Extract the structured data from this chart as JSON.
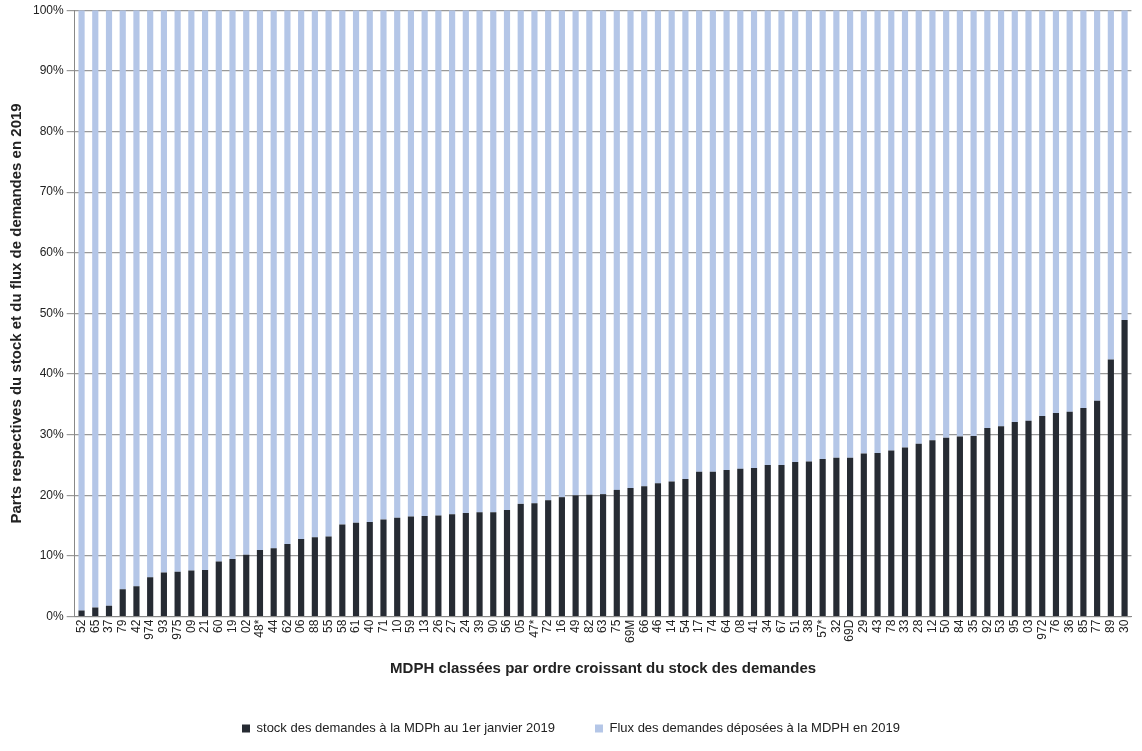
{
  "chart_data": {
    "type": "bar",
    "stacked": true,
    "xlabel": "MDPH classées par ordre croissant du stock des demandes",
    "ylabel": "Parts respectives du stock et du flux de demandes en 2019",
    "categories": [
      "52",
      "65",
      "37",
      "79",
      "42",
      "974",
      "93",
      "975",
      "09",
      "21",
      "60",
      "19",
      "02",
      "48*",
      "44",
      "62",
      "06",
      "88",
      "55",
      "58",
      "61",
      "40",
      "71",
      "10",
      "59",
      "13",
      "26",
      "27",
      "24",
      "39",
      "90",
      "56",
      "05",
      "47*",
      "72",
      "16",
      "49",
      "82",
      "63",
      "75",
      "69M",
      "66",
      "46",
      "14",
      "54",
      "17",
      "74",
      "64",
      "08",
      "41",
      "34",
      "67",
      "51",
      "38",
      "57*",
      "32",
      "69D",
      "29",
      "43",
      "78",
      "33",
      "28",
      "12",
      "50",
      "84",
      "35",
      "92",
      "53",
      "95",
      "03",
      "972",
      "76",
      "36",
      "85",
      "77",
      "89",
      "30"
    ],
    "series": [
      {
        "name": "stock des demandes à la MDPh au 1er janvier 2019",
        "color": "#262b33",
        "values": [
          1.0,
          1.5,
          1.8,
          4.5,
          5.0,
          6.5,
          7.3,
          7.4,
          7.6,
          7.7,
          9.1,
          9.5,
          10.2,
          11.0,
          11.3,
          12.0,
          12.8,
          13.1,
          13.2,
          15.2,
          15.5,
          15.6,
          16.0,
          16.3,
          16.5,
          16.6,
          16.7,
          16.9,
          17.1,
          17.2,
          17.2,
          17.6,
          18.6,
          18.7,
          19.2,
          19.7,
          20.0,
          20.1,
          20.2,
          20.9,
          21.2,
          21.5,
          22.0,
          22.3,
          22.7,
          23.9,
          23.9,
          24.2,
          24.4,
          24.5,
          25.0,
          25.0,
          25.5,
          25.6,
          26.0,
          26.2,
          26.2,
          26.9,
          27.0,
          27.4,
          27.9,
          28.5,
          29.1,
          29.5,
          29.7,
          29.8,
          31.1,
          31.4,
          32.1,
          32.3,
          33.1,
          33.6,
          33.8,
          34.4,
          35.6,
          42.4,
          48.9
        ]
      },
      {
        "name": "Flux des demandes déposées à la MDPH en 2019",
        "color": "#b4c6e7",
        "values": [
          99.0,
          98.5,
          98.2,
          95.5,
          95.0,
          93.5,
          92.7,
          92.6,
          92.4,
          92.3,
          90.9,
          90.5,
          89.8,
          89.0,
          88.7,
          88.0,
          87.2,
          86.9,
          86.8,
          84.8,
          84.5,
          84.4,
          84.0,
          83.7,
          83.5,
          83.4,
          83.3,
          83.1,
          82.9,
          82.8,
          82.8,
          82.4,
          81.4,
          81.3,
          80.8,
          80.3,
          80.0,
          79.9,
          79.8,
          79.1,
          78.8,
          78.5,
          78.0,
          77.7,
          77.3,
          76.1,
          76.1,
          75.8,
          75.6,
          75.5,
          75.0,
          75.0,
          74.5,
          74.4,
          74.0,
          73.8,
          73.8,
          73.1,
          73.0,
          72.6,
          72.1,
          71.5,
          70.9,
          70.5,
          70.3,
          70.2,
          68.9,
          68.6,
          67.9,
          67.7,
          66.9,
          66.4,
          66.2,
          65.6,
          64.4,
          57.6,
          51.1
        ]
      }
    ],
    "ylim": [
      0,
      100
    ],
    "yticks": [
      {
        "value": 0,
        "label": "0%"
      },
      {
        "value": 10,
        "label": "10%"
      },
      {
        "value": 20,
        "label": "20%"
      },
      {
        "value": 30,
        "label": "30%"
      },
      {
        "value": 40,
        "label": "40%"
      },
      {
        "value": 50,
        "label": "50%"
      },
      {
        "value": 60,
        "label": "60%"
      },
      {
        "value": 70,
        "label": "70%"
      },
      {
        "value": 80,
        "label": "80%"
      },
      {
        "value": 90,
        "label": "90%"
      },
      {
        "value": 100,
        "label": "100%"
      }
    ],
    "grid": "y",
    "legend": "bottom"
  }
}
